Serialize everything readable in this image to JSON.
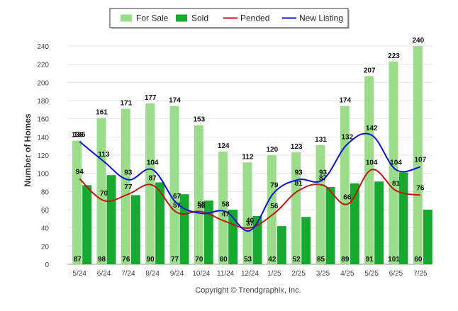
{
  "chart_data": {
    "type": "bar",
    "categories": [
      "5/24",
      "6/24",
      "7/24",
      "8/24",
      "9/24",
      "10/24",
      "11/24",
      "12/24",
      "1/25",
      "2/25",
      "3/25",
      "4/25",
      "5/25",
      "6/25",
      "7/25"
    ],
    "series": [
      {
        "name": "For Sale",
        "kind": "bar",
        "color": "#9bdc8a",
        "values": [
          136,
          161,
          171,
          177,
          174,
          153,
          124,
          112,
          120,
          123,
          131,
          174,
          207,
          223,
          240
        ]
      },
      {
        "name": "Sold",
        "kind": "bar",
        "color": "#17a82f",
        "values": [
          87,
          98,
          76,
          90,
          77,
          70,
          60,
          53,
          42,
          52,
          85,
          89,
          91,
          101,
          60
        ]
      },
      {
        "name": "Pended",
        "kind": "line",
        "color": "#c0180e",
        "values": [
          94,
          70,
          77,
          87,
          57,
          58,
          47,
          40,
          56,
          81,
          87,
          66,
          104,
          81,
          76
        ]
      },
      {
        "name": "New Listing",
        "kind": "line",
        "color": "#0a14d6",
        "values": [
          135,
          113,
          93,
          104,
          67,
          56,
          58,
          37,
          79,
          93,
          93,
          132,
          142,
          104,
          107
        ]
      }
    ],
    "ylabel": "Number of Homes",
    "ylim": [
      0,
      240
    ],
    "yticks": [
      0,
      20,
      40,
      60,
      80,
      100,
      120,
      140,
      160,
      180,
      200,
      220,
      240
    ],
    "grid": true,
    "legend_position": "top-center",
    "footer": "Copyright © Trendgraphix, Inc."
  }
}
